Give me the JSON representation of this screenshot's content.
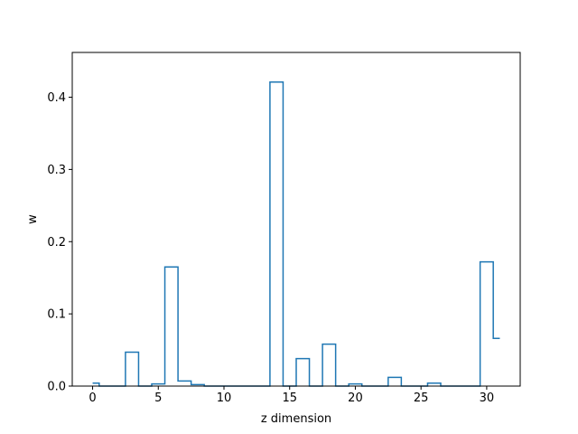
{
  "chart_data": {
    "type": "line",
    "drawstyle": "steps-mid",
    "xlabel": "z dimension",
    "ylabel": "w",
    "xlim": [
      -1.55,
      32.55
    ],
    "ylim": [
      0,
      0.462
    ],
    "xticks": [
      0,
      5,
      10,
      15,
      20,
      25,
      30
    ],
    "yticks": [
      0.0,
      0.1,
      0.2,
      0.3,
      0.4
    ],
    "grid": false,
    "color": "#1f77b4",
    "x": [
      0,
      1,
      2,
      3,
      4,
      5,
      6,
      7,
      8,
      9,
      10,
      11,
      12,
      13,
      14,
      15,
      16,
      17,
      18,
      19,
      20,
      21,
      22,
      23,
      24,
      25,
      26,
      27,
      28,
      29,
      30,
      31
    ],
    "values": [
      0.004,
      0.0,
      0.0,
      0.047,
      0.0,
      0.003,
      0.165,
      0.007,
      0.002,
      0.0,
      0.0,
      0.0,
      0.0,
      0.0,
      0.421,
      0.0,
      0.038,
      0.0,
      0.058,
      0.0,
      0.003,
      0.0,
      0.0,
      0.012,
      0.0,
      0.0,
      0.004,
      0.0,
      0.0,
      0.0,
      0.172,
      0.066
    ]
  }
}
